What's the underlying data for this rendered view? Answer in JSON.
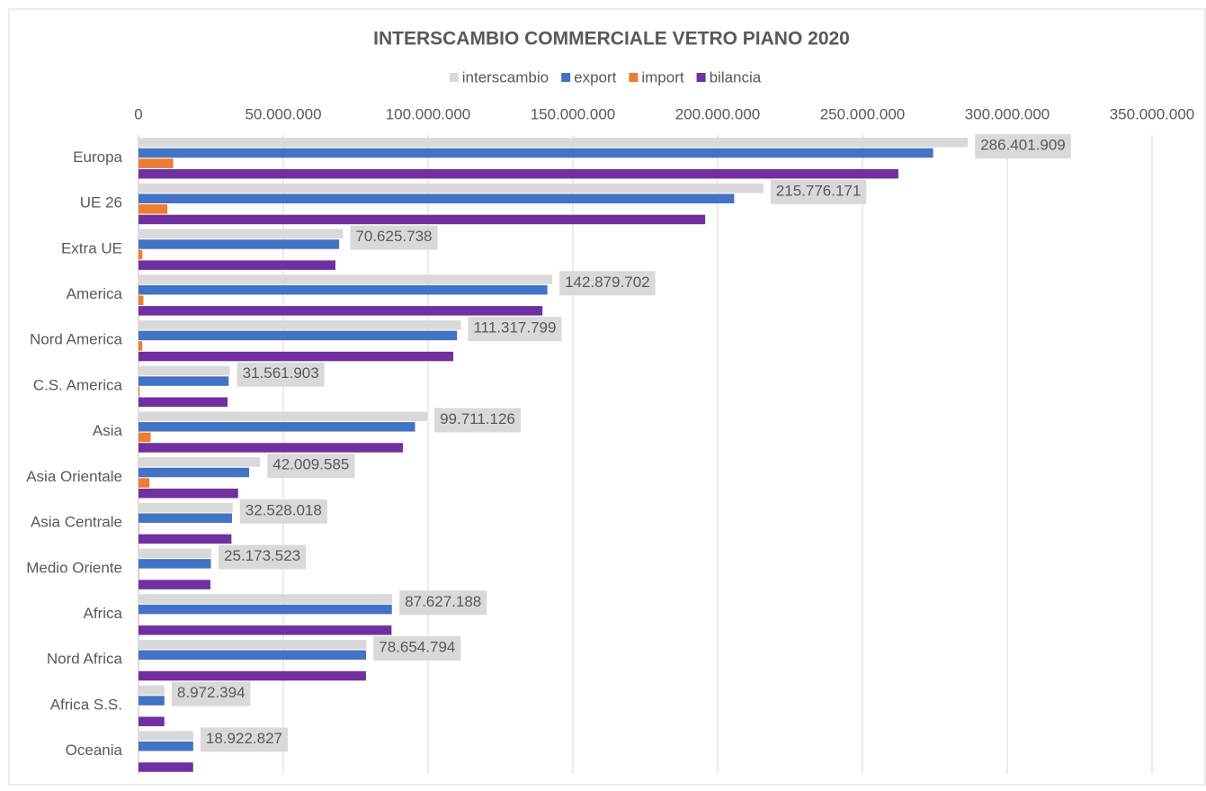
{
  "chart_data": {
    "type": "bar",
    "orientation": "horizontal",
    "title": "INTERSCAMBIO COMMERCIALE VETRO PIANO 2020",
    "legend": "top",
    "grid": true,
    "categories": [
      "Europa",
      "UE 26",
      "Extra UE",
      "America",
      "Nord America",
      "C.S. America",
      "Asia",
      "Asia Orientale",
      "Asia Centrale",
      "Medio Oriente",
      "Africa",
      "Nord Africa",
      "Africa S.S.",
      "Oceania"
    ],
    "series": [
      {
        "name": "interscambio",
        "color": "#d9d9d9",
        "values": [
          286401909,
          215776171,
          70625738,
          142879702,
          111317799,
          31561903,
          99711126,
          42009585,
          32528018,
          25173523,
          87627188,
          78654794,
          8972394,
          18922827
        ],
        "value_labels": [
          "286.401.909",
          "215.776.171",
          "70.625.738",
          "142.879.702",
          "111.317.799",
          "31.561.903",
          "99.711.126",
          "42.009.585",
          "32.528.018",
          "25.173.523",
          "87.627.188",
          "78.654.794",
          "8.972.394",
          "18.922.827"
        ]
      },
      {
        "name": "export",
        "color": "#4472c4",
        "values": [
          274400000,
          205700000,
          69300000,
          141200000,
          110000000,
          31150000,
          95500000,
          38200000,
          32300000,
          25000000,
          87500000,
          78600000,
          8950000,
          18900000
        ]
      },
      {
        "name": "import",
        "color": "#ed7d31",
        "values": [
          12000000,
          10000000,
          1300000,
          1700000,
          1300000,
          400000,
          4200000,
          3800000,
          200000,
          170000,
          120000,
          50000,
          20000,
          20000
        ]
      },
      {
        "name": "bilancia",
        "color": "#7030a0",
        "values": [
          262400000,
          195700000,
          68000000,
          139500000,
          108700000,
          30750000,
          91300000,
          34400000,
          32100000,
          24830000,
          87380000,
          78550000,
          8930000,
          18880000
        ]
      }
    ],
    "xlim": [
      0,
      350000000
    ],
    "xticks": [
      0,
      {
        "value": 50000000,
        "label": "50.000.000"
      },
      {
        "value": 100000000,
        "label": "100.000.000"
      },
      {
        "value": 150000000,
        "label": "150.000.000"
      },
      {
        "value": 200000000,
        "label": "200.000.000"
      },
      {
        "value": 250000000,
        "label": "250.000.000"
      },
      {
        "value": 300000000,
        "label": "300.000.000"
      },
      {
        "value": 350000000,
        "label": "350.000.000"
      }
    ]
  }
}
